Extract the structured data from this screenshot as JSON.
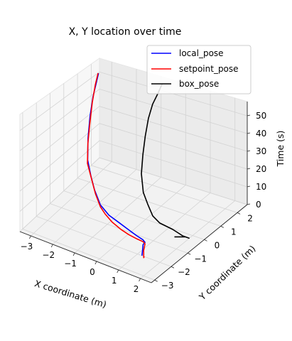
{
  "chart_data": {
    "type": "line",
    "projection": "3d",
    "title": "X, Y location over time",
    "xlabel": "X coordinate (m)",
    "ylabel": "Y coordinate (m)",
    "zlabel": "Time (s)",
    "xlim": [
      -3.5,
      2.5
    ],
    "ylim": [
      -3.2,
      2.6
    ],
    "zlim": [
      0,
      58
    ],
    "x_ticks": [
      -3,
      -2,
      -1,
      0,
      1,
      2
    ],
    "y_ticks": [
      -3,
      -2,
      -1,
      0,
      1,
      2
    ],
    "z_ticks": [
      0,
      10,
      20,
      30,
      40,
      50
    ],
    "grid": true,
    "legend_position": "top-right",
    "series": [
      {
        "name": "local_pose",
        "color": "#0000ff",
        "points": [
          [
            1.2,
            -2.0,
            0
          ],
          [
            1.05,
            -1.75,
            0.5
          ],
          [
            0.9,
            -1.5,
            1
          ],
          [
            0.95,
            -1.45,
            2
          ],
          [
            0.75,
            -1.3,
            1.5
          ],
          [
            0.4,
            -1.2,
            1.5
          ],
          [
            0,
            -1.1,
            2
          ],
          [
            -0.5,
            -1.0,
            3
          ],
          [
            -1.0,
            -0.9,
            4
          ],
          [
            -1.5,
            -0.7,
            6
          ],
          [
            -2.0,
            -0.3,
            9
          ],
          [
            -2.4,
            0.1,
            12
          ],
          [
            -2.75,
            0.45,
            17
          ],
          [
            -3.0,
            0.9,
            25
          ],
          [
            -3.15,
            1.3,
            34
          ],
          [
            -3.2,
            1.6,
            43
          ],
          [
            -3.22,
            1.9,
            50
          ],
          [
            -3.2,
            2.0,
            54
          ]
        ]
      },
      {
        "name": "setpoint_pose",
        "color": "#ff0000",
        "points": [
          [
            1.3,
            -2.0,
            0
          ],
          [
            1.35,
            -2.1,
            0.3
          ],
          [
            1.1,
            -1.75,
            0.5
          ],
          [
            0.95,
            -1.45,
            1.3
          ],
          [
            0.8,
            -1.35,
            1.0
          ],
          [
            0.5,
            -1.3,
            0.8
          ],
          [
            0.1,
            -1.25,
            1
          ],
          [
            -0.3,
            -1.15,
            1.2
          ],
          [
            -0.8,
            -1.0,
            2
          ],
          [
            -1.2,
            -0.85,
            3.5
          ],
          [
            -1.5,
            -0.7,
            5
          ],
          [
            -1.9,
            -0.4,
            8
          ],
          [
            -2.3,
            0,
            11
          ],
          [
            -2.7,
            0.35,
            16
          ],
          [
            -2.95,
            0.8,
            23
          ],
          [
            -3.1,
            1.2,
            31
          ],
          [
            -3.2,
            1.55,
            40
          ],
          [
            -3.25,
            1.85,
            48
          ],
          [
            -3.22,
            2.0,
            54
          ]
        ]
      },
      {
        "name": "box_pose",
        "color": "#000000",
        "points": [
          [
            1.5,
            -0.4,
            0
          ],
          [
            1.9,
            -0.3,
            1
          ],
          [
            2.1,
            -0.4,
            2
          ],
          [
            2.2,
            -0.5,
            3
          ],
          [
            2.0,
            -0.6,
            4
          ],
          [
            1.5,
            -0.5,
            4.5
          ],
          [
            0.9,
            -0.45,
            5
          ],
          [
            0.5,
            -0.3,
            6
          ],
          [
            0.1,
            0,
            8
          ],
          [
            -0.3,
            0.3,
            11
          ],
          [
            -0.7,
            0.8,
            16
          ],
          [
            -0.95,
            1.3,
            22
          ],
          [
            -1.1,
            1.7,
            29
          ],
          [
            -1.15,
            2.0,
            37
          ],
          [
            -1.1,
            2.2,
            44
          ],
          [
            -0.95,
            2.3,
            50
          ],
          [
            -0.8,
            2.35,
            56
          ]
        ]
      }
    ]
  }
}
